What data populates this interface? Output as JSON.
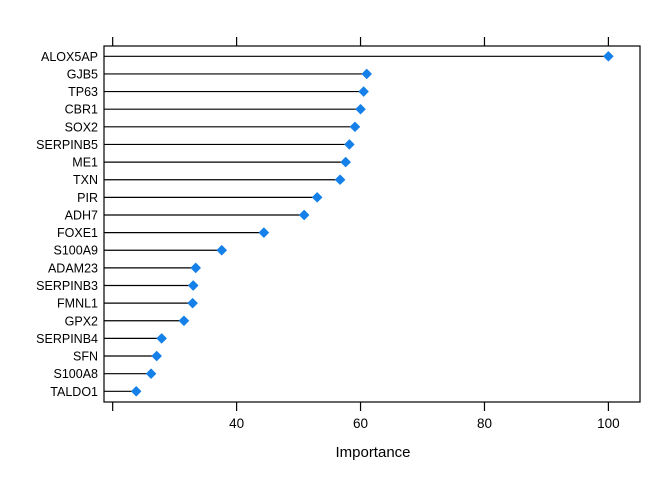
{
  "chart_data": {
    "type": "scatter",
    "variant": "horizontal-lollipop-dotchart",
    "title": "",
    "xlabel": "Importance",
    "ylabel": "",
    "categories": [
      "ALOX5AP",
      "GJB5",
      "TP63",
      "CBR1",
      "SOX2",
      "SERPINB5",
      "ME1",
      "TXN",
      "PIR",
      "ADH7",
      "FOXE1",
      "S100A9",
      "ADAM23",
      "SERPINB3",
      "FMNL1",
      "GPX2",
      "SERPINB4",
      "SFN",
      "S100A8",
      "TALDO1"
    ],
    "values": [
      100.0,
      61.0,
      60.5,
      60.0,
      59.1,
      58.2,
      57.6,
      56.7,
      53.0,
      50.9,
      44.4,
      37.6,
      33.4,
      33.0,
      32.9,
      31.5,
      27.9,
      27.1,
      26.2,
      23.8
    ],
    "xlim": [
      18.6,
      105.1
    ],
    "xticks": [
      20,
      40,
      60,
      80,
      100
    ],
    "xtick_labels": [
      "",
      "40",
      "60",
      "80",
      "100"
    ],
    "tick_sides": [
      "bottom",
      "top"
    ],
    "grid": false,
    "legend": null,
    "colors": {
      "point": "#1580E8",
      "line": "#000000",
      "box": "#000000",
      "background": "#ffffff",
      "text": "#000000"
    }
  }
}
